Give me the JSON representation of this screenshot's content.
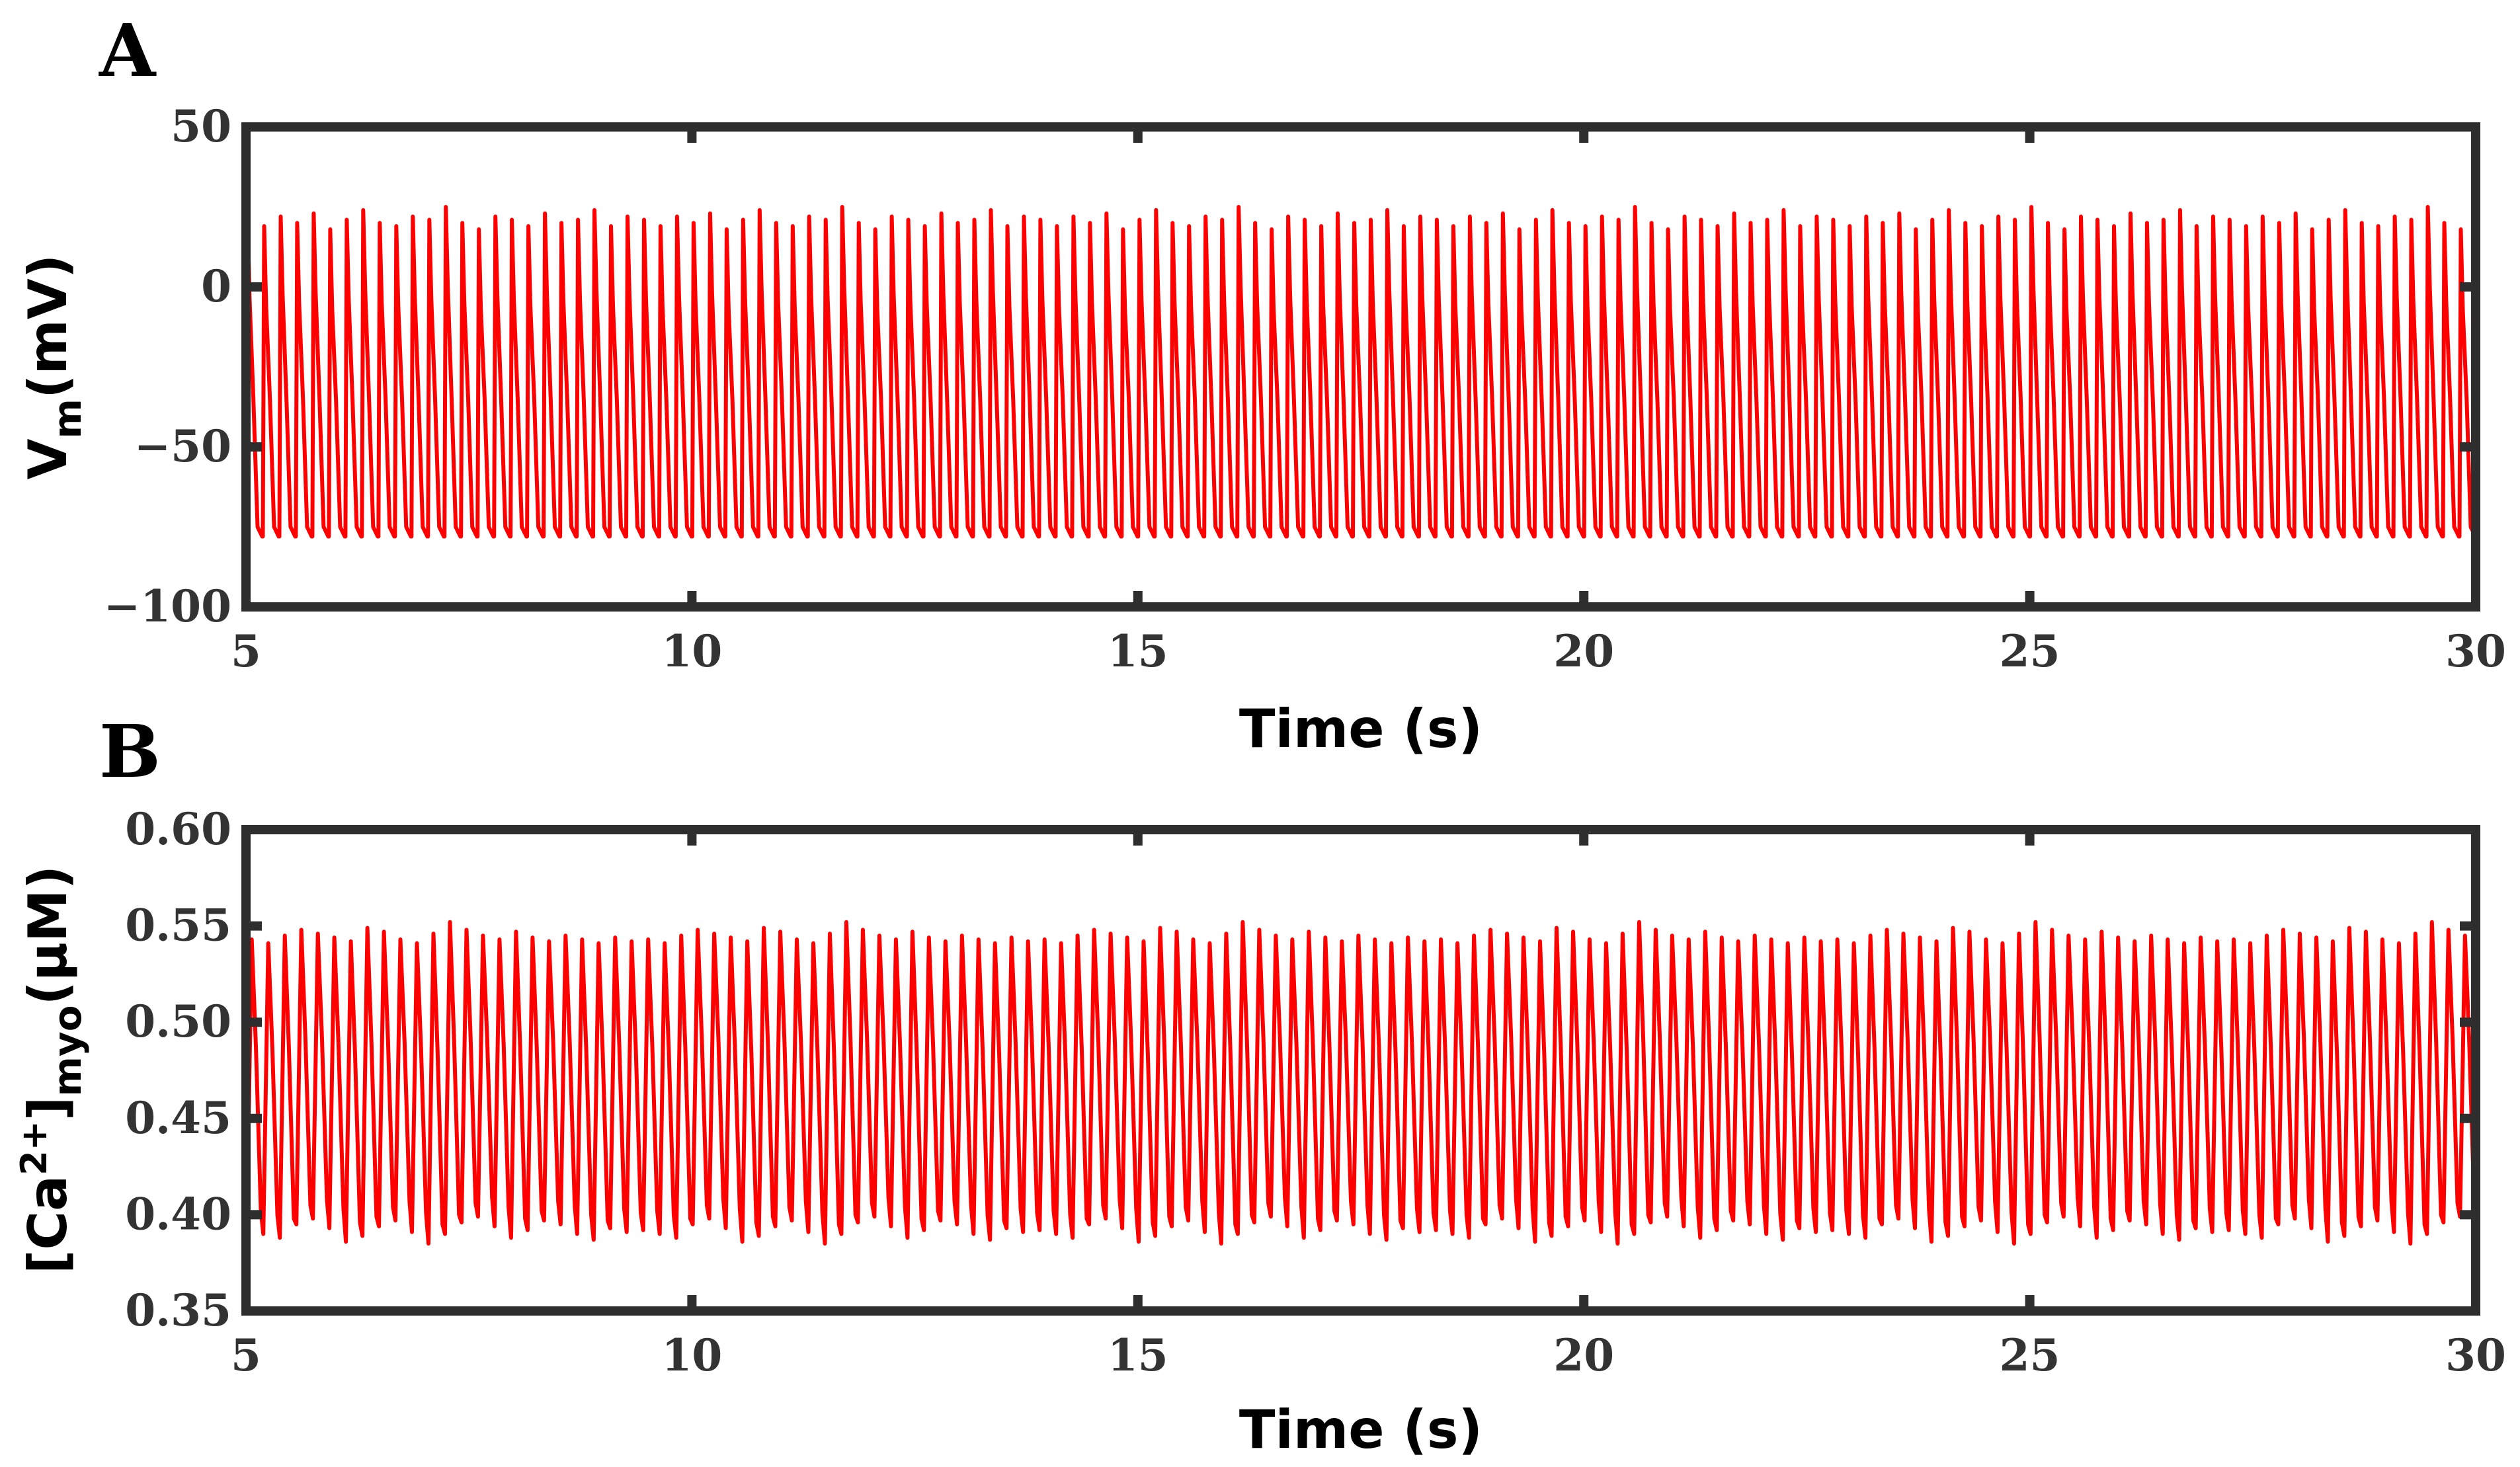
{
  "chart_data": [
    {
      "panel": "A",
      "type": "line",
      "xlabel": "Time (s)",
      "ylabel_main": "V",
      "ylabel_sub": "m",
      "ylabel_unit": "(mV)",
      "xlim": [
        5,
        30
      ],
      "ylim": [
        -100,
        50
      ],
      "xticks": [
        5,
        10,
        15,
        20,
        25,
        30
      ],
      "yticks": [
        50,
        0,
        -50,
        -100
      ],
      "ytick_labels": [
        "50",
        "0",
        "−50",
        "−100"
      ],
      "series": [
        {
          "color": "#ff0000",
          "waveform": "periodic",
          "t_start": 5,
          "t_end": 30,
          "period_s": 0.185,
          "min": -78,
          "peak_min": 17,
          "peak_max": 26,
          "peaks_sample": [
            21,
            19,
            22,
            20,
            23,
            18,
            21,
            24,
            20,
            19,
            22,
            21,
            25,
            20,
            18,
            22,
            21,
            19,
            23,
            20,
            21,
            24,
            19,
            22
          ]
        }
      ]
    },
    {
      "panel": "B",
      "type": "line",
      "xlabel": "Time (s)",
      "ylabel_main": "[Ca",
      "ylabel_sup": "2+",
      "ylabel_close": "]",
      "ylabel_sub": "myo",
      "ylabel_unit": "(μM)",
      "xlim": [
        5,
        30
      ],
      "ylim": [
        0.35,
        0.6
      ],
      "xticks": [
        5,
        10,
        15,
        20,
        25,
        30
      ],
      "yticks": [
        0.6,
        0.55,
        0.5,
        0.45,
        0.4,
        0.35
      ],
      "ytick_labels": [
        "0.60",
        "0.55",
        "0.50",
        "0.45",
        "0.40",
        "0.35"
      ],
      "series": [
        {
          "color": "#ff0000",
          "waveform": "periodic",
          "t_start": 5,
          "t_end": 30,
          "period_s": 0.185,
          "peak_range": [
            0.538,
            0.553
          ],
          "trough_range": [
            0.382,
            0.402
          ],
          "peaks_sample": [
            0.543,
            0.541,
            0.545,
            0.548,
            0.546,
            0.544,
            0.542,
            0.549,
            0.547,
            0.543,
            0.541,
            0.546,
            0.552,
            0.548,
            0.545,
            0.543,
            0.547,
            0.544,
            0.542,
            0.545,
            0.543,
            0.541,
            0.544,
            0.542
          ],
          "troughs_sample": [
            0.392,
            0.39,
            0.388,
            0.395,
            0.398,
            0.393,
            0.386,
            0.389,
            0.394,
            0.397,
            0.391,
            0.385,
            0.39,
            0.396,
            0.399,
            0.394,
            0.388,
            0.392,
            0.397,
            0.395,
            0.39,
            0.387,
            0.393,
            0.391
          ]
        }
      ]
    }
  ]
}
